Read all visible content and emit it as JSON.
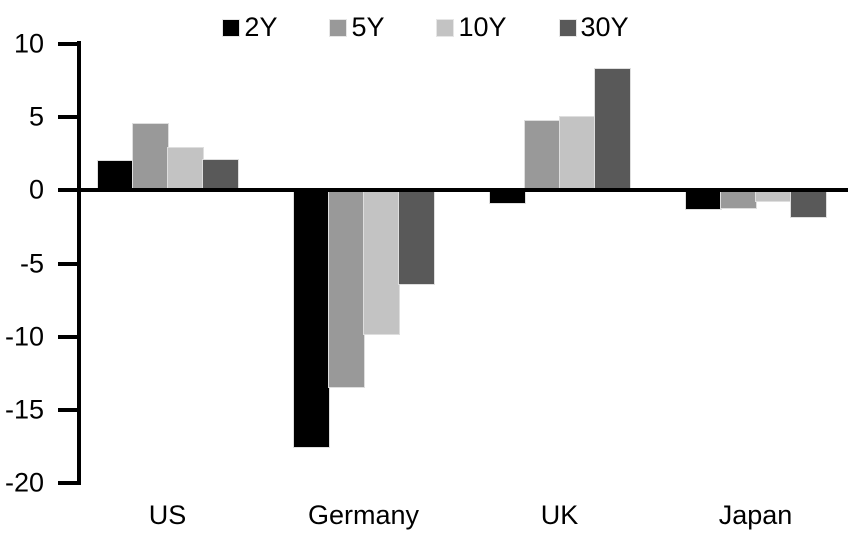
{
  "chart_data": {
    "type": "bar",
    "title": "",
    "categories": [
      "US",
      "Germany",
      "UK",
      "Japan"
    ],
    "series": [
      {
        "name": "2Y",
        "color": "#000000",
        "values": [
          2.0,
          -17.5,
          -0.9,
          -1.3
        ]
      },
      {
        "name": "5Y",
        "color": "#999999",
        "values": [
          4.5,
          -13.4,
          4.7,
          -1.2
        ]
      },
      {
        "name": "10Y",
        "color": "#c3c3c3",
        "values": [
          2.9,
          -9.8,
          5.0,
          -0.7
        ]
      },
      {
        "name": "30Y",
        "color": "#595959",
        "values": [
          2.1,
          -6.4,
          8.3,
          -1.8
        ]
      }
    ],
    "xlabel": "",
    "ylabel": "",
    "ylim": [
      -20,
      10
    ],
    "yticks": [
      10,
      5,
      0,
      -5,
      -10,
      -15,
      -20
    ],
    "legend_position": "top",
    "grid": false,
    "axis_color": "#000000",
    "background_color": "#ffffff"
  }
}
